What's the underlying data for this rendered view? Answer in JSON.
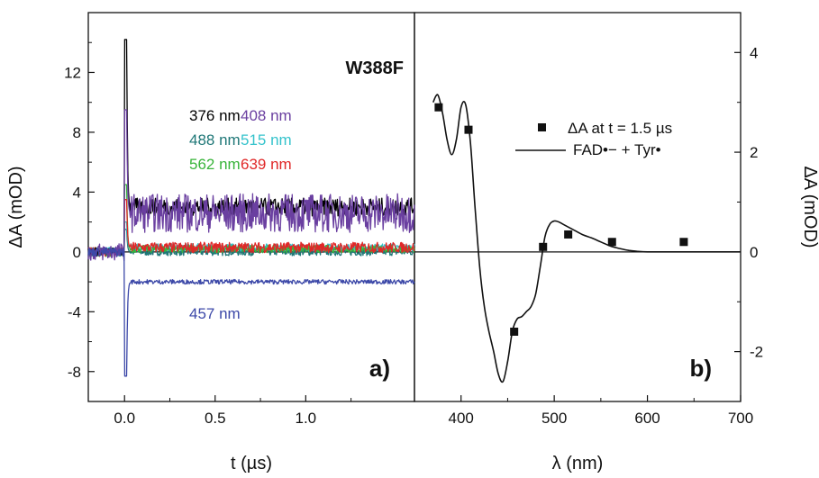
{
  "chart_data": [
    {
      "type": "line",
      "panel_label": "a)",
      "title": "W388F",
      "xlabel": "t (µs)",
      "ylabel": "ΔA (mOD)",
      "xlim": [
        -0.2,
        1.6
      ],
      "ylim": [
        -10,
        16
      ],
      "xticks": [
        0.0,
        0.5,
        1.0
      ],
      "yticks": [
        -8,
        -4,
        0,
        4,
        8,
        12
      ],
      "zero_line": true,
      "series": [
        {
          "name": "376 nm",
          "color": "#000000",
          "pre": 0.0,
          "spike": 14.2,
          "level": 3.0,
          "noise": 0.6
        },
        {
          "name": "408 nm",
          "color": "#6a3fa0",
          "pre": 0.0,
          "spike": 9.5,
          "level": 2.6,
          "noise": 1.3
        },
        {
          "name": "488 nm",
          "color": "#1f7777",
          "pre": 0.0,
          "spike": 1.5,
          "level": 0.0,
          "noise": 0.25
        },
        {
          "name": "515 nm",
          "color": "#35c3cc",
          "pre": 0.0,
          "spike": 2.0,
          "level": 0.3,
          "noise": 0.25
        },
        {
          "name": "562 nm",
          "color": "#38b43a",
          "pre": 0.0,
          "spike": 4.5,
          "level": 0.2,
          "noise": 0.25
        },
        {
          "name": "639 nm",
          "color": "#e02828",
          "pre": 0.0,
          "spike": 3.5,
          "level": 0.3,
          "noise": 0.35
        },
        {
          "name": "457 nm",
          "color": "#3c48a8",
          "pre": 0.0,
          "spike": -8.3,
          "level": -2.0,
          "noise": 0.15
        }
      ]
    },
    {
      "type": "scatter",
      "panel_label": "b)",
      "xlabel": "λ (nm)",
      "ylabel": "ΔA (mOD)",
      "xlim": [
        350,
        700
      ],
      "ylim": [
        -3,
        4.8
      ],
      "xticks": [
        400,
        500,
        600,
        700
      ],
      "yticks": [
        -2,
        0,
        2,
        4
      ],
      "zero_line": true,
      "legend": [
        "ΔA at t = 1.5 µs",
        "FAD•− + Tyr•"
      ],
      "points": {
        "x": [
          376,
          408,
          457,
          488,
          515,
          562,
          639
        ],
        "y": [
          2.9,
          2.45,
          -1.6,
          0.1,
          0.35,
          0.2,
          0.2
        ]
      },
      "curve": {
        "x": [
          370,
          375,
          380,
          385,
          390,
          395,
          400,
          405,
          410,
          415,
          420,
          425,
          430,
          435,
          440,
          445,
          450,
          455,
          460,
          465,
          470,
          475,
          480,
          485,
          490,
          495,
          500,
          505,
          510,
          520,
          530,
          540,
          550,
          560,
          570,
          580,
          590,
          600,
          610,
          620,
          640,
          660,
          700
        ],
        "y": [
          3.0,
          3.15,
          2.8,
          2.25,
          1.95,
          2.25,
          2.9,
          2.95,
          2.2,
          0.9,
          -0.3,
          -1.1,
          -1.6,
          -2.0,
          -2.45,
          -2.6,
          -2.2,
          -1.6,
          -1.35,
          -1.3,
          -1.2,
          -1.1,
          -0.85,
          -0.3,
          0.3,
          0.55,
          0.62,
          0.6,
          0.55,
          0.45,
          0.35,
          0.28,
          0.2,
          0.12,
          0.07,
          0.03,
          0.01,
          0.0,
          0.0,
          0.0,
          0.0,
          0.0,
          0.0
        ]
      }
    }
  ]
}
